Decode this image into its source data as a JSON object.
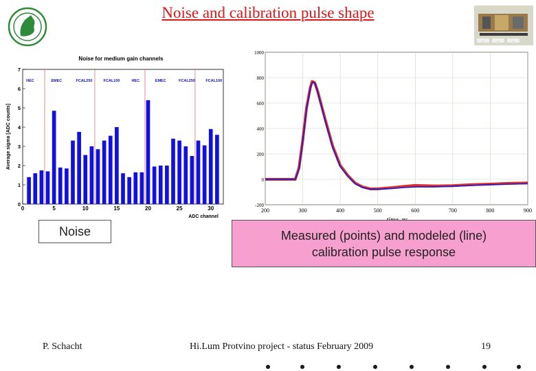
{
  "slide": {
    "title": "Noise and calibration pulse shape",
    "logo_icon": "max-planck-minerva-logo",
    "thumbnail_icon": "detector-module-photo",
    "thumbnail_labels": [
      "...",
      "...",
      "..."
    ],
    "captions": {
      "noise": "Noise",
      "pulse_line1": "Measured (points) and modeled (line)",
      "pulse_line2": "calibration pulse response"
    },
    "footer": {
      "author": "P. Schacht",
      "project": "Hi.Lum Protvino project - status February 2009",
      "page": "19"
    },
    "colors": {
      "title": "#d81818",
      "caption_fill": "#f79fce",
      "bar": "#1010e0"
    }
  },
  "chart_data": [
    {
      "type": "bar",
      "title": "Noise for medium gain channels",
      "xlabel": "ADC channel",
      "ylabel": "Average sigma [ADC counts]",
      "ylim": [
        0,
        7
      ],
      "xlim": [
        0,
        32
      ],
      "x_ticks": [
        "0",
        "5",
        "10",
        "15",
        "20",
        "25",
        "30"
      ],
      "y_ticks": [
        "0",
        "1",
        "2",
        "3",
        "4",
        "5",
        "6",
        "7"
      ],
      "region_labels": [
        "HEC",
        "EMEC",
        "FCAL250",
        "FCAL100",
        "HEC",
        "EMEC",
        "FCAL250",
        "FCAL100"
      ],
      "x": [
        1,
        2,
        3,
        4,
        5,
        6,
        7,
        8,
        9,
        10,
        11,
        12,
        13,
        14,
        15,
        16,
        17,
        18,
        19,
        20,
        21,
        22,
        23,
        24,
        25,
        26,
        27,
        28,
        29,
        30,
        31
      ],
      "values": [
        1.4,
        1.6,
        1.75,
        1.7,
        4.85,
        1.9,
        1.85,
        3.3,
        3.75,
        2.55,
        3.0,
        2.85,
        3.3,
        3.55,
        4.0,
        1.6,
        1.4,
        1.65,
        1.65,
        5.4,
        1.95,
        2.0,
        2.0,
        3.4,
        3.3,
        3.0,
        2.5,
        3.3,
        3.05,
        3.9,
        3.6
      ]
    },
    {
      "type": "line",
      "xlabel": "time, ns",
      "ylabel": "",
      "xlim": [
        200,
        900
      ],
      "ylim": [
        -200,
        1000
      ],
      "x_ticks": [
        "200",
        "300",
        "400",
        "500",
        "600",
        "700",
        "800",
        "900"
      ],
      "y_ticks": [
        "-200",
        "0",
        "200",
        "400",
        "600",
        "800",
        "1000"
      ],
      "series": [
        {
          "color": "#d81818",
          "points": [
            [
              200,
              0
            ],
            [
              280,
              0
            ],
            [
              290,
              90
            ],
            [
              300,
              310
            ],
            [
              310,
              560
            ],
            [
              320,
              720
            ],
            [
              325,
              770
            ],
            [
              332,
              760
            ],
            [
              340,
              690
            ],
            [
              360,
              470
            ],
            [
              380,
              260
            ],
            [
              400,
              110
            ],
            [
              420,
              30
            ],
            [
              440,
              -30
            ],
            [
              460,
              -60
            ],
            [
              480,
              -75
            ],
            [
              500,
              -75
            ],
            [
              540,
              -65
            ],
            [
              570,
              -55
            ],
            [
              600,
              -48
            ],
            [
              650,
              -52
            ],
            [
              700,
              -50
            ],
            [
              750,
              -42
            ],
            [
              800,
              -38
            ],
            [
              850,
              -32
            ],
            [
              900,
              -28
            ]
          ]
        },
        {
          "color": "#1a1ad0",
          "points": [
            [
              200,
              0
            ],
            [
              280,
              0
            ],
            [
              290,
              80
            ],
            [
              300,
              300
            ],
            [
              310,
              550
            ],
            [
              320,
              715
            ],
            [
              326,
              765
            ],
            [
              333,
              755
            ],
            [
              340,
              685
            ],
            [
              360,
              460
            ],
            [
              380,
              250
            ],
            [
              400,
              100
            ],
            [
              420,
              25
            ],
            [
              440,
              -35
            ],
            [
              460,
              -65
            ],
            [
              480,
              -78
            ],
            [
              500,
              -78
            ],
            [
              540,
              -72
            ],
            [
              570,
              -65
            ],
            [
              600,
              -60
            ],
            [
              650,
              -60
            ],
            [
              700,
              -55
            ],
            [
              750,
              -48
            ],
            [
              800,
              -42
            ],
            [
              850,
              -38
            ],
            [
              900,
              -35
            ]
          ]
        }
      ]
    }
  ]
}
